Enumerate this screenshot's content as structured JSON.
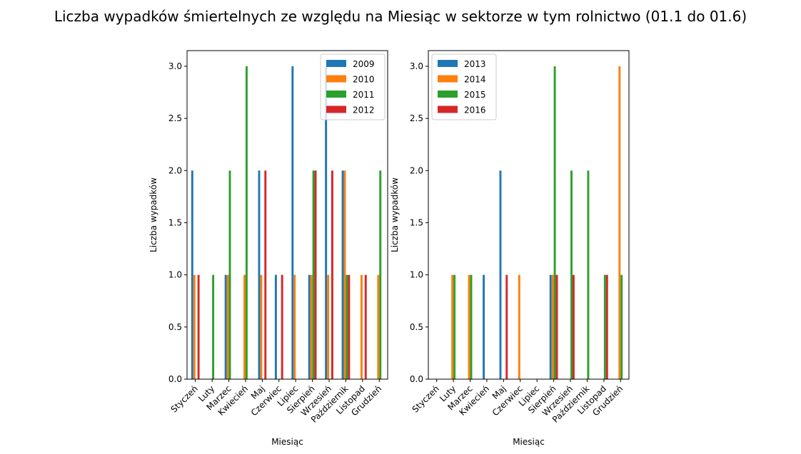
{
  "figure": {
    "title": "Liczba wypadków śmiertelnych ze względu na Miesiąc w sektorze    w tym rolnictwo (01.1 do 01.6)"
  },
  "chart_data": [
    {
      "type": "bar",
      "xlabel": "Miesiąc",
      "ylabel": "Liczba wypadków",
      "ylim": [
        0,
        3.15
      ],
      "yticks": [
        "0.0",
        "0.5",
        "1.0",
        "1.5",
        "2.0",
        "2.5",
        "3.0"
      ],
      "legend_position": "top-right",
      "categories": [
        "Styczeń",
        "Luty",
        "Marzec",
        "Kwiecień",
        "Maj",
        "Czerwiec",
        "Lipiec",
        "Sierpień",
        "Wrzesień",
        "Październik",
        "Listopad",
        "Grudzień"
      ],
      "series": [
        {
          "name": "2009",
          "color": "#1f77b4",
          "values": [
            2,
            0,
            1,
            0,
            2,
            1,
            3,
            1,
            3,
            2,
            0,
            0
          ]
        },
        {
          "name": "2010",
          "color": "#ff7f0e",
          "values": [
            1,
            0,
            1,
            1,
            1,
            0,
            1,
            1,
            1,
            2,
            1,
            1
          ]
        },
        {
          "name": "2011",
          "color": "#2ca02c",
          "values": [
            0,
            1,
            2,
            3,
            0,
            0,
            0,
            2,
            0,
            1,
            0,
            2
          ]
        },
        {
          "name": "2012",
          "color": "#d62728",
          "values": [
            1,
            0,
            0,
            0,
            2,
            1,
            0,
            2,
            2,
            1,
            1,
            0
          ]
        }
      ]
    },
    {
      "type": "bar",
      "xlabel": "Miesiąc",
      "ylabel": "Liczba wypadków",
      "ylim": [
        0,
        3.15
      ],
      "yticks": [
        "0.0",
        "0.5",
        "1.0",
        "1.5",
        "2.0",
        "2.5",
        "3.0"
      ],
      "legend_position": "top-left",
      "categories": [
        "Styczeń",
        "Luty",
        "Marzec",
        "Kwiecień",
        "Maj",
        "Czerwiec",
        "Lipiec",
        "Sierpień",
        "Wrzesień",
        "Październik",
        "Listopad",
        "Grudzień"
      ],
      "series": [
        {
          "name": "2013",
          "color": "#1f77b4",
          "values": [
            0,
            0,
            0,
            1,
            2,
            0,
            0,
            1,
            0,
            0,
            0,
            0
          ]
        },
        {
          "name": "2014",
          "color": "#ff7f0e",
          "values": [
            0,
            1,
            1,
            0,
            0,
            1,
            0,
            1,
            0,
            0,
            0,
            3
          ]
        },
        {
          "name": "2015",
          "color": "#2ca02c",
          "values": [
            0,
            1,
            1,
            0,
            0,
            0,
            0,
            3,
            2,
            2,
            1,
            1
          ]
        },
        {
          "name": "2016",
          "color": "#d62728",
          "values": [
            0,
            0,
            0,
            0,
            1,
            0,
            0,
            1,
            1,
            0,
            1,
            0
          ]
        }
      ]
    }
  ]
}
